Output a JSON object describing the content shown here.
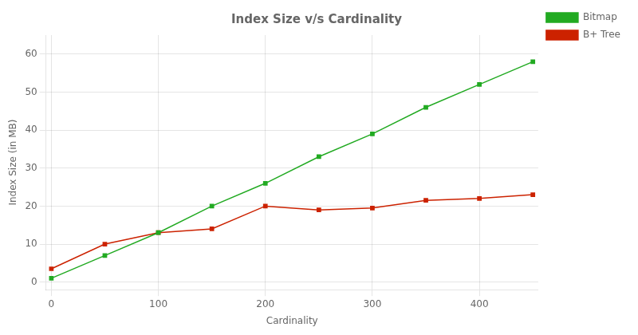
{
  "chart_data": {
    "type": "line",
    "title": "Index Size v/s Cardinality",
    "xlabel": "Cardinality",
    "ylabel": "Index Size (in MB)",
    "x": [
      0,
      50,
      100,
      150,
      200,
      250,
      300,
      350,
      400,
      450
    ],
    "series": [
      {
        "name": "Bitmap",
        "color": "#22aa22",
        "values": [
          1,
          7,
          13,
          20,
          26,
          33,
          39,
          46,
          52,
          58
        ]
      },
      {
        "name": "B+ Tree",
        "color": "#cc2200",
        "values": [
          3.5,
          10,
          13,
          14,
          20,
          19,
          19.5,
          21.5,
          22,
          23
        ]
      }
    ],
    "xlim": [
      -5,
      455
    ],
    "ylim": [
      -2,
      65
    ],
    "xticks": [
      0,
      100,
      200,
      300,
      400
    ],
    "yticks": [
      0,
      10,
      20,
      30,
      40,
      50,
      60
    ],
    "grid": true,
    "legend": "right",
    "marker": "square"
  }
}
